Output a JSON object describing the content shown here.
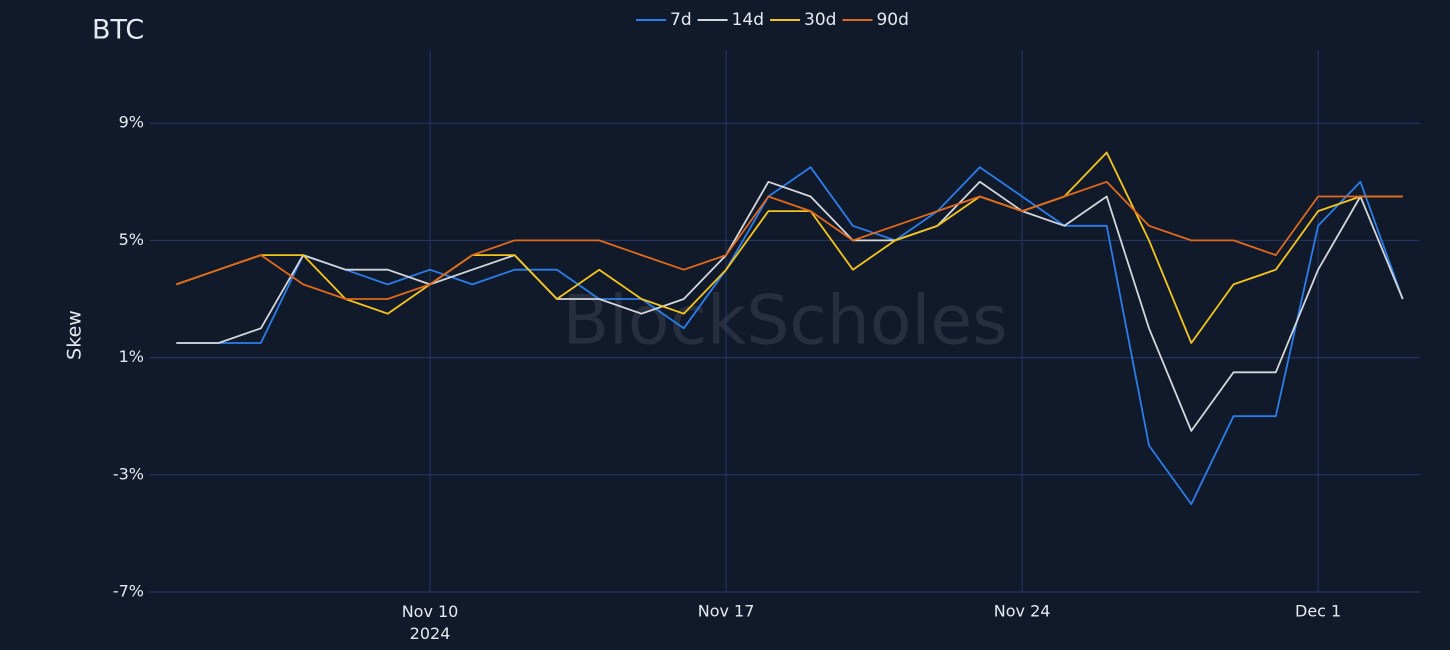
{
  "chart_data": {
    "type": "line",
    "title": "BTC",
    "y_label": "Skew",
    "watermark": "BlockScholes",
    "x": [
      "2024-11-04",
      "2024-11-05",
      "2024-11-06",
      "2024-11-07",
      "2024-11-08",
      "2024-11-09",
      "2024-11-10",
      "2024-11-11",
      "2024-11-12",
      "2024-11-13",
      "2024-11-14",
      "2024-11-15",
      "2024-11-16",
      "2024-11-17",
      "2024-11-18",
      "2024-11-19",
      "2024-11-20",
      "2024-11-21",
      "2024-11-22",
      "2024-11-23",
      "2024-11-24",
      "2024-11-25",
      "2024-11-26",
      "2024-11-27",
      "2024-11-28",
      "2024-11-29",
      "2024-11-30",
      "2024-12-01",
      "2024-12-02",
      "2024-12-03"
    ],
    "series": [
      {
        "name": "7d",
        "color": "#2b7de9",
        "values": [
          1.5,
          1.5,
          1.5,
          4.5,
          4,
          3.5,
          4,
          3.5,
          4,
          4,
          3,
          3,
          2,
          4,
          6.5,
          7.5,
          5.5,
          5,
          6,
          7.5,
          6.5,
          5.5,
          5.5,
          -2,
          -4,
          -1,
          -1,
          5.5,
          7,
          3
        ]
      },
      {
        "name": "14d",
        "color": "#d4d6da",
        "values": [
          1.5,
          1.5,
          2,
          4.5,
          4,
          4,
          3.5,
          4,
          4.5,
          3,
          3,
          2.5,
          3,
          4.5,
          7,
          6.5,
          5,
          5,
          5.5,
          7,
          6,
          5.5,
          6.5,
          2,
          -1.5,
          0.5,
          0.5,
          4,
          6.5,
          3
        ]
      },
      {
        "name": "30d",
        "color": "#f5c518",
        "values": [
          3.5,
          4,
          4.5,
          4.5,
          3,
          2.5,
          3.5,
          4.5,
          4.5,
          3,
          4,
          3,
          2.5,
          4,
          6,
          6,
          4,
          5,
          5.5,
          6.5,
          6,
          6.5,
          8,
          5,
          1.5,
          3.5,
          4,
          6,
          6.5,
          6.5
        ]
      },
      {
        "name": "90d",
        "color": "#e0691b",
        "values": [
          3.5,
          4,
          4.5,
          3.5,
          3,
          3,
          3.5,
          4.5,
          5,
          5,
          5,
          4.5,
          4,
          4.5,
          6.5,
          6,
          5,
          5.5,
          6,
          6.5,
          6,
          6.5,
          7,
          5.5,
          5,
          5,
          4.5,
          6.5,
          6.5,
          6.5
        ]
      }
    ],
    "xlim": [
      "2024-11-03",
      "2024-12-04"
    ],
    "xticks": [
      {
        "value": "2024-11-10",
        "label": "Nov 10\n2024"
      },
      {
        "value": "2024-11-17",
        "label": "Nov 17"
      },
      {
        "value": "2024-11-24",
        "label": "Nov 24"
      },
      {
        "value": "2024-12-01",
        "label": "Dec 1"
      }
    ],
    "ylim": [
      -7,
      11.5
    ],
    "yticks": [
      {
        "value": -7,
        "label": "-7%"
      },
      {
        "value": -3,
        "label": "-3%"
      },
      {
        "value": 1,
        "label": "1%"
      },
      {
        "value": 5,
        "label": "5%"
      },
      {
        "value": 9,
        "label": "9%"
      }
    ],
    "grid": true,
    "legend": "top"
  }
}
